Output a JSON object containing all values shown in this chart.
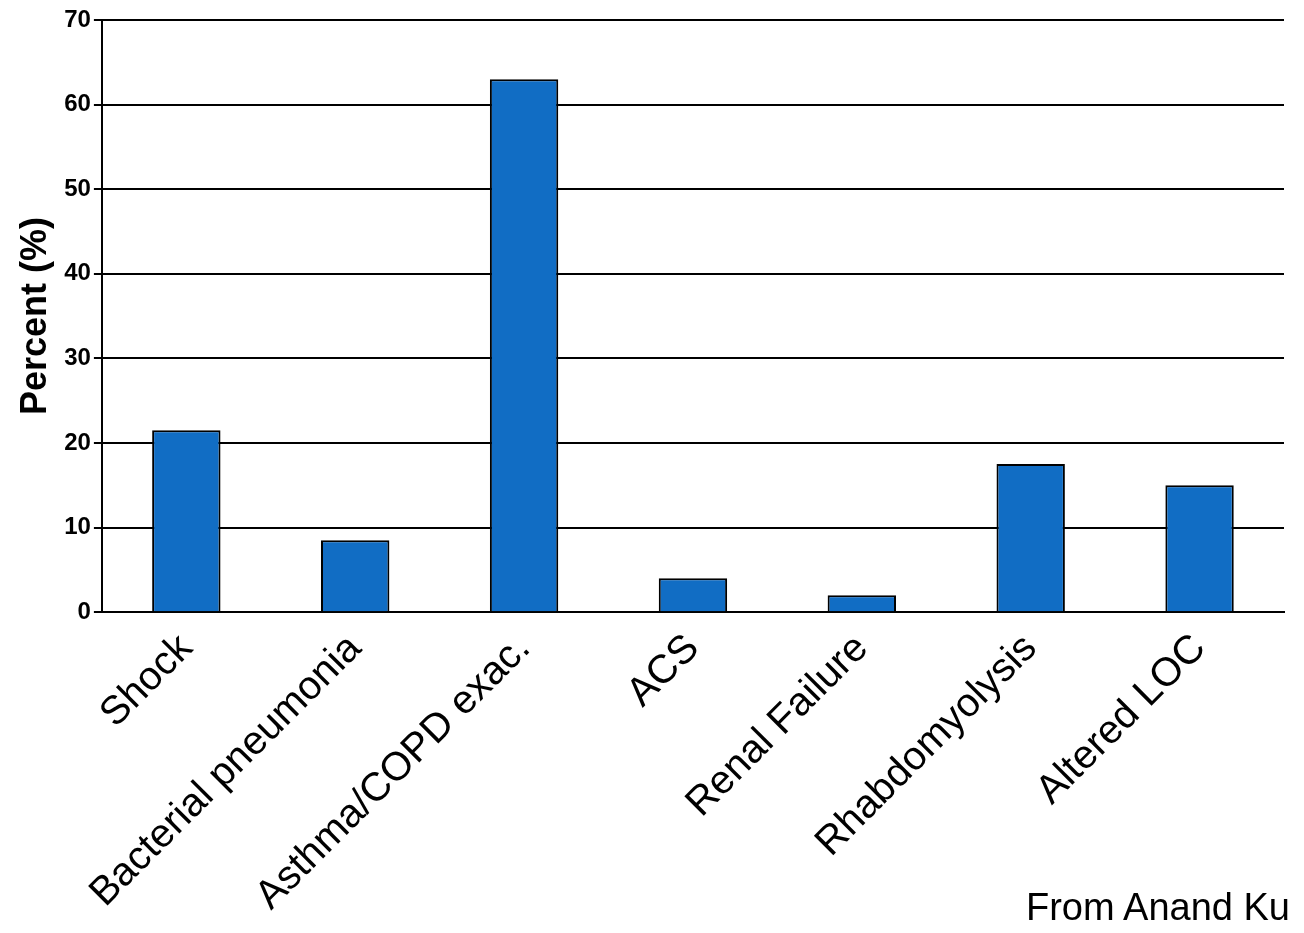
{
  "chart_data": {
    "type": "bar",
    "ylabel": "Percent (%)",
    "categories": [
      "Shock",
      "Bacterial pneumonia",
      "Asthma/COPD exac.",
      "ACS",
      "Renal Failure",
      "Rhabdomyolysis",
      "Altered LOC"
    ],
    "values": [
      21.5,
      8.5,
      63,
      4,
      2,
      17.5,
      15
    ],
    "color": "#116dc4",
    "ylim": [
      0,
      70
    ],
    "yticks": [
      0,
      10,
      20,
      30,
      40,
      50,
      60,
      70
    ],
    "grid": "y",
    "annotations": [
      "From Anand Ku"
    ]
  }
}
